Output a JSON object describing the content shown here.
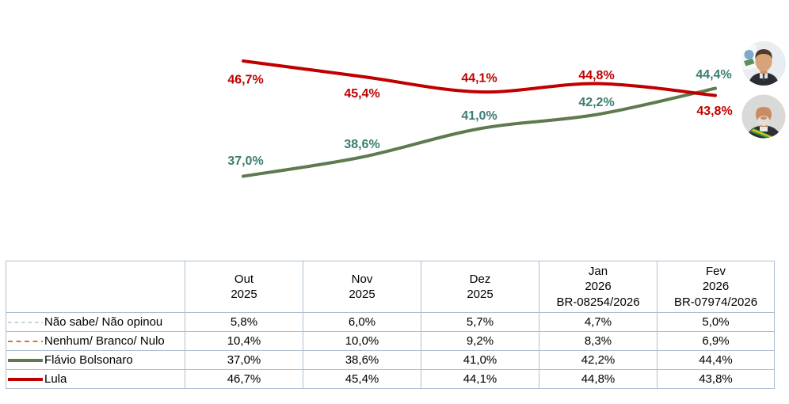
{
  "chart_data": {
    "type": "line",
    "title": "",
    "xlabel": "",
    "ylabel": "",
    "grid": false,
    "data_labels": true,
    "legend_position": "table-row-headers-left",
    "x_categories": [
      "Out 2025",
      "Nov 2025",
      "Dez 2025",
      "Jan 2026 BR-08254/2026",
      "Fev 2026 BR-07974/2026"
    ],
    "header_lines": [
      [
        "Out",
        "2025"
      ],
      [
        "Nov",
        "2025"
      ],
      [
        "Dez",
        "2025"
      ],
      [
        "Jan",
        "2026",
        "BR-08254/2026"
      ],
      [
        "Fev",
        "2026",
        "BR-07974/2026"
      ]
    ],
    "series": [
      {
        "name": "Não sabe/ Não opinou",
        "values": [
          5.8,
          6.0,
          5.7,
          4.7,
          5.0
        ],
        "labels": [
          "5,8%",
          "6,0%",
          "5,7%",
          "4,7%",
          "5,0%"
        ],
        "color": "#B3C6D2",
        "line_style": "dashed-thin",
        "plotted_in_chart": false
      },
      {
        "name": "Nenhum/ Branco/ Nulo",
        "values": [
          10.4,
          10.0,
          9.2,
          8.3,
          6.9
        ],
        "labels": [
          "10,4%",
          "10,0%",
          "9,2%",
          "8,3%",
          "6,9%"
        ],
        "color": "#E0732C",
        "line_style": "dashed",
        "plotted_in_chart": false
      },
      {
        "name": "Flávio Bolsonaro",
        "values": [
          37.0,
          38.6,
          41.0,
          42.2,
          44.4
        ],
        "labels": [
          "37,0%",
          "38,6%",
          "41,0%",
          "42,2%",
          "44,4%"
        ],
        "color": "#5E7A4E",
        "label_color": "#3B7D70",
        "line_style": "solid",
        "plotted_in_chart": true
      },
      {
        "name": "Lula",
        "values": [
          46.7,
          45.4,
          44.1,
          44.8,
          43.8
        ],
        "labels": [
          "46,7%",
          "45,4%",
          "44,1%",
          "44,8%",
          "43,8%"
        ],
        "color": "#C00000",
        "label_color": "#C00000",
        "line_style": "solid",
        "plotted_in_chart": true
      }
    ],
    "avatars": [
      {
        "name": "Flávio Bolsonaro",
        "position": "top-right"
      },
      {
        "name": "Lula",
        "position": "bottom-right"
      }
    ]
  }
}
